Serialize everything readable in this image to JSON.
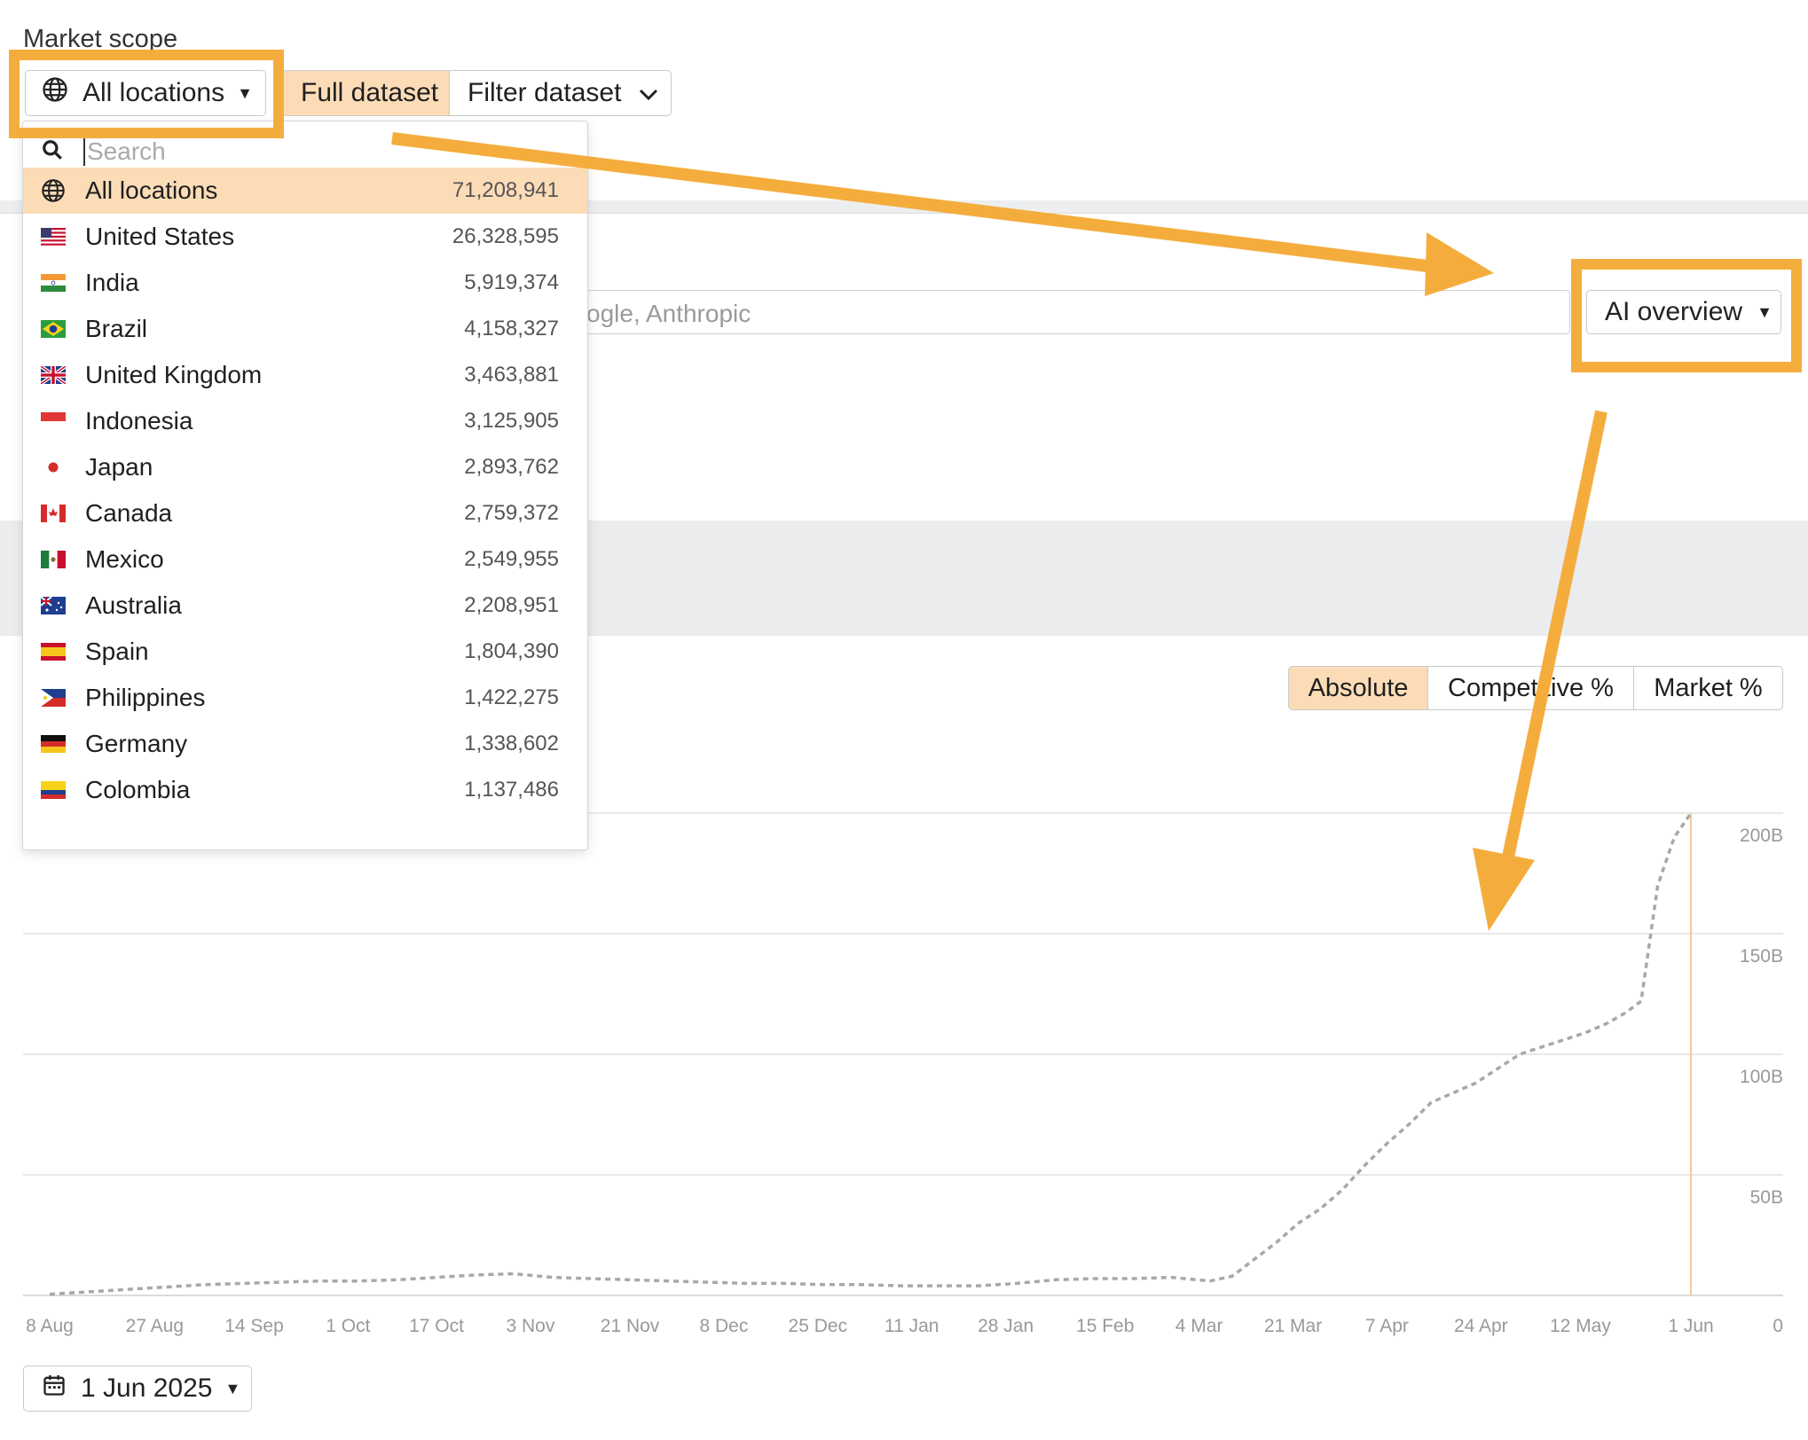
{
  "market_scope": {
    "label": "Market scope",
    "location_button": "All locations",
    "dataset_full": "Full dataset",
    "dataset_filter": "Filter dataset"
  },
  "competitor_search": {
    "placeholder_fragment": "ogle, Anthropic",
    "mode_button": "AI overview"
  },
  "location_dropdown": {
    "search_placeholder": "Search",
    "items": [
      {
        "name": "All locations",
        "count": "71,208,941",
        "flag": "globe-icon",
        "selected": true
      },
      {
        "name": "United States",
        "count": "26,328,595",
        "flag": "flag-us"
      },
      {
        "name": "India",
        "count": "5,919,374",
        "flag": "flag-in"
      },
      {
        "name": "Brazil",
        "count": "4,158,327",
        "flag": "flag-br"
      },
      {
        "name": "United Kingdom",
        "count": "3,463,881",
        "flag": "flag-gb"
      },
      {
        "name": "Indonesia",
        "count": "3,125,905",
        "flag": "flag-id"
      },
      {
        "name": "Japan",
        "count": "2,893,762",
        "flag": "flag-jp"
      },
      {
        "name": "Canada",
        "count": "2,759,372",
        "flag": "flag-ca"
      },
      {
        "name": "Mexico",
        "count": "2,549,955",
        "flag": "flag-mx"
      },
      {
        "name": "Australia",
        "count": "2,208,951",
        "flag": "flag-au"
      },
      {
        "name": "Spain",
        "count": "1,804,390",
        "flag": "flag-es"
      },
      {
        "name": "Philippines",
        "count": "1,422,275",
        "flag": "flag-ph"
      },
      {
        "name": "Germany",
        "count": "1,338,602",
        "flag": "flag-de"
      },
      {
        "name": "Colombia",
        "count": "1,137,486",
        "flag": "flag-co"
      }
    ]
  },
  "metric_toggle": {
    "absolute": "Absolute",
    "competitive": "Competitive %",
    "market": "Market %",
    "selected": "absolute"
  },
  "date_button": "1 Jun 2025",
  "colors": {
    "accent": "#f4ad3d",
    "selected_bg": "#fbdcb7",
    "series": "#a8a8a8",
    "marker": "#f5c99a"
  },
  "chart_data": {
    "type": "line",
    "x_ticks": [
      "8 Aug",
      "27 Aug",
      "14 Sep",
      "1 Oct",
      "17 Oct",
      "3 Nov",
      "21 Nov",
      "8 Dec",
      "25 Dec",
      "11 Jan",
      "28 Jan",
      "15 Feb",
      "4 Mar",
      "21 Mar",
      "7 Apr",
      "24 Apr",
      "12 May",
      "1 Jun"
    ],
    "y_ticks": [
      "200B",
      "150B",
      "100B",
      "50B",
      "0"
    ],
    "ylim": [
      0,
      200
    ],
    "y_unit": "B",
    "grid": true,
    "series": [
      {
        "style": "dashed",
        "x": [
          "2024-08-08",
          "2024-08-15",
          "2024-08-22",
          "2024-08-29",
          "2024-09-05",
          "2024-09-12",
          "2024-09-19",
          "2024-09-26",
          "2024-10-03",
          "2024-10-10",
          "2024-10-17",
          "2024-10-24",
          "2024-10-31",
          "2024-11-07",
          "2024-11-14",
          "2024-11-21",
          "2024-11-28",
          "2024-12-05",
          "2024-12-12",
          "2024-12-19",
          "2024-12-26",
          "2025-01-02",
          "2025-01-09",
          "2025-01-16",
          "2025-01-23",
          "2025-01-30",
          "2025-02-06",
          "2025-02-13",
          "2025-02-20",
          "2025-02-27",
          "2025-03-06",
          "2025-03-10",
          "2025-03-14",
          "2025-03-18",
          "2025-03-22",
          "2025-03-26",
          "2025-03-30",
          "2025-04-03",
          "2025-04-07",
          "2025-04-11",
          "2025-04-15",
          "2025-04-19",
          "2025-04-23",
          "2025-04-27",
          "2025-05-01",
          "2025-05-05",
          "2025-05-09",
          "2025-05-13",
          "2025-05-17",
          "2025-05-20",
          "2025-05-23",
          "2025-05-26",
          "2025-05-29",
          "2025-06-01"
        ],
        "values": [
          0.5,
          1.5,
          2.5,
          3.5,
          4.5,
          5,
          5.5,
          6,
          6,
          6.5,
          7.5,
          8.5,
          9,
          7.5,
          7,
          6.5,
          6,
          5.5,
          5,
          5,
          4.5,
          4.5,
          4,
          4,
          4,
          5,
          6.5,
          7,
          7,
          7.5,
          6,
          8,
          15,
          22,
          30,
          36,
          44,
          54,
          63,
          71,
          80,
          84,
          88,
          94,
          100,
          103,
          106,
          109,
          113,
          117,
          122,
          170,
          190,
          200
        ]
      }
    ],
    "marker_date": "1 Jun"
  }
}
